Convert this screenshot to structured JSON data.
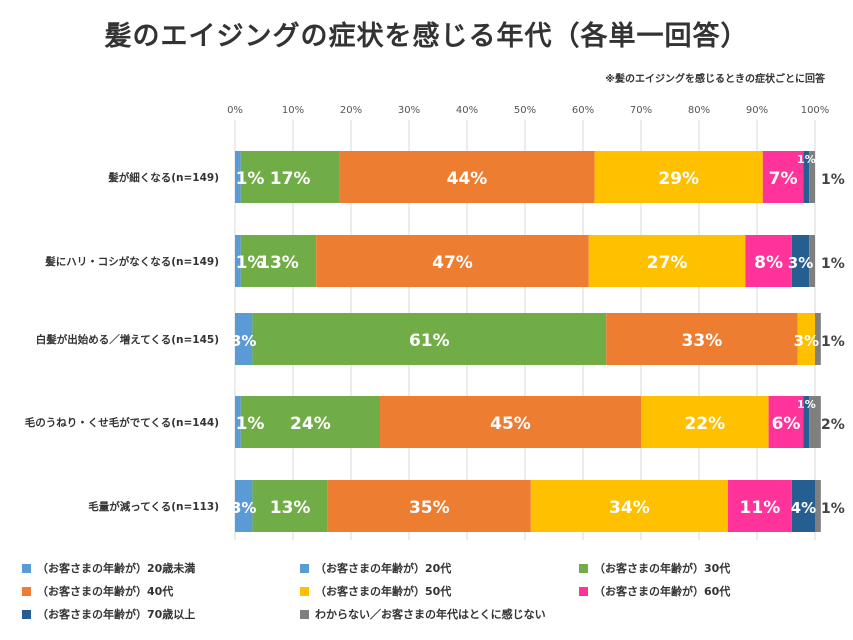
{
  "title": "髪のエイジングの症状を感じる年代（各単一回答）",
  "note": "※髪のエイジングを感じるときの症状ごとに回答",
  "chart_data": {
    "type": "bar",
    "orientation": "horizontal",
    "stacked": "percent",
    "x_ticks": [
      "0%",
      "10%",
      "20%",
      "30%",
      "40%",
      "50%",
      "60%",
      "70%",
      "80%",
      "90%",
      "100%"
    ],
    "xlim": [
      0,
      100
    ],
    "grid": true,
    "legend_position": "bottom",
    "categories": [
      "髪が細くなる(n=149)",
      "髪にハリ・コシがなくなる(n=149)",
      "白髪が出始める／増えてくる(n=145)",
      "毛のうねり・くせ毛がでてくる(n=144)",
      "毛量が減ってくる(n=113)"
    ],
    "series": [
      {
        "name": "（お客さまの年齢が）20歳未満",
        "color": "#5b9bd5",
        "values": [
          0,
          0,
          0,
          0,
          0
        ],
        "labels": [
          "",
          "",
          "",
          "",
          ""
        ]
      },
      {
        "name": "（お客さまの年齢が）20代",
        "color": "#5b9bd5",
        "values": [
          1,
          1,
          3,
          1,
          3
        ],
        "labels": [
          "1%",
          "1%",
          "3%",
          "1%",
          "3%"
        ]
      },
      {
        "name": "（お客さまの年齢が）30代",
        "color": "#70ad47",
        "values": [
          17,
          13,
          61,
          24,
          13
        ],
        "labels": [
          "17%",
          "13%",
          "61%",
          "24%",
          "13%"
        ]
      },
      {
        "name": "（お客さまの年齢が）40代",
        "color": "#ed7d31",
        "values": [
          44,
          47,
          33,
          45,
          35
        ],
        "labels": [
          "44%",
          "47%",
          "33%",
          "45%",
          "35%"
        ]
      },
      {
        "name": "（お客さまの年齢が）50代",
        "color": "#ffc000",
        "values": [
          29,
          27,
          3,
          22,
          34
        ],
        "labels": [
          "29%",
          "27%",
          "3%",
          "22%",
          "34%"
        ]
      },
      {
        "name": "（お客さまの年齢が）60代",
        "color": "#ff3399",
        "values": [
          7,
          8,
          0,
          6,
          11
        ],
        "labels": [
          "7%",
          "8%",
          "",
          "6%",
          "11%"
        ]
      },
      {
        "name": "（お客さまの年齢が）70歳以上",
        "color": "#255e91",
        "values": [
          1,
          3,
          0,
          1,
          4
        ],
        "labels": [
          "1%",
          "3%",
          "",
          "1%",
          "4%"
        ]
      },
      {
        "name": "わからない／お客さまの年代はとくに感じない",
        "color": "#7f7f7f",
        "values": [
          1,
          1,
          1,
          2,
          1
        ],
        "labels": [
          "1%",
          "1%",
          "1%",
          "2%",
          "1%"
        ]
      }
    ]
  }
}
